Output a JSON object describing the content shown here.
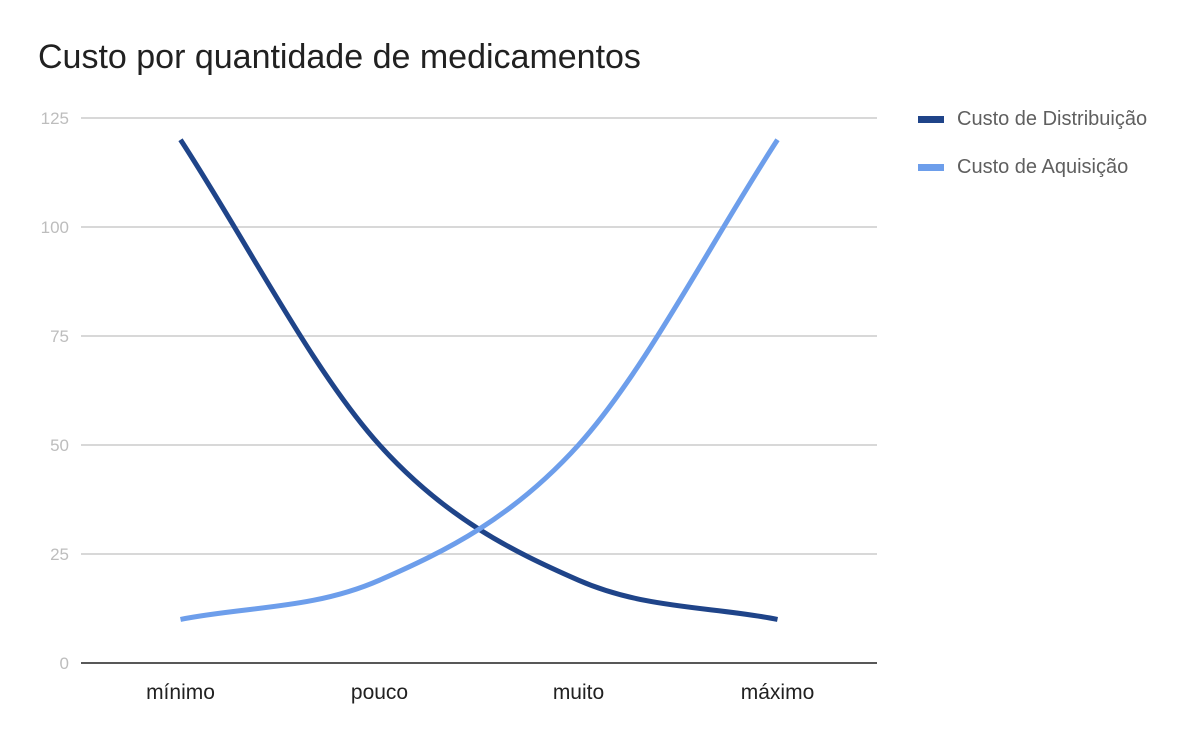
{
  "chart_data": {
    "type": "line",
    "title": "Custo por quantidade de medicamentos",
    "categories": [
      "mínimo",
      "pouco",
      "muito",
      "máximo"
    ],
    "series": [
      {
        "name": "Custo de Distribuição",
        "color": "#1f4489",
        "values": [
          120,
          50,
          19,
          10
        ]
      },
      {
        "name": "Custo de Aquisição",
        "color": "#6d9eeb",
        "values": [
          10,
          19,
          50,
          120
        ]
      }
    ],
    "y_ticks": [
      "0",
      "25",
      "50",
      "75",
      "100",
      "125"
    ],
    "ylim": [
      0,
      125
    ],
    "grid": true,
    "smooth": true,
    "legend_position": "right"
  }
}
